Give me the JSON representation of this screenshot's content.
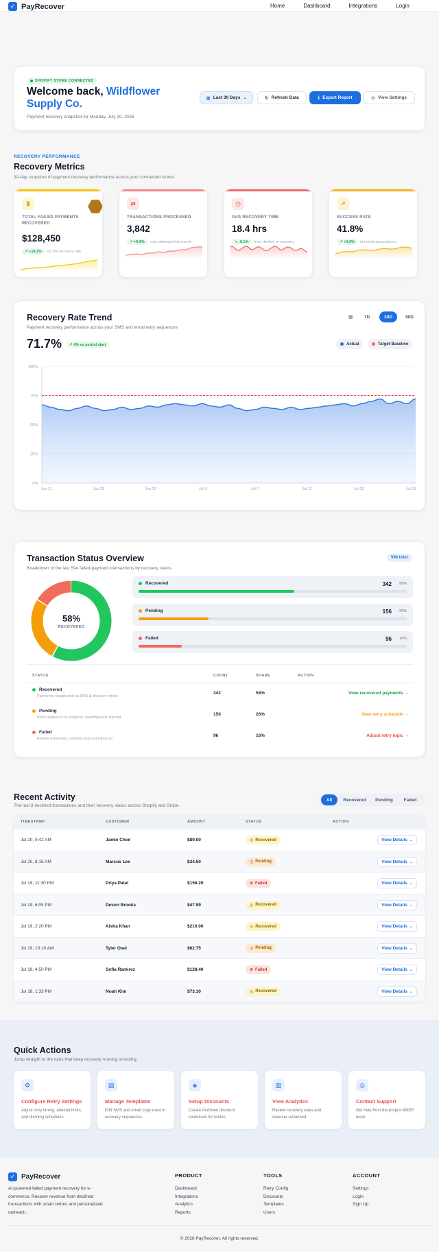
{
  "nav": {
    "brand": "PayRecover",
    "links": [
      "Home",
      "Dashboard",
      "Integrations",
      "Login"
    ]
  },
  "hero": {
    "badge": "SHOPIFY STORE CONNECTED",
    "welcome": "Welcome back, ",
    "store": "Wildflower Supply Co.",
    "subtitle": "Payment recovery snapshot for Monday, July 20, 2026",
    "date_button": "Last 30 Days",
    "refresh_button": "Refresh Data",
    "export_button": "Export Report",
    "settings_button": "View Settings"
  },
  "metrics_section": {
    "eyebrow": "RECOVERY PERFORMANCE",
    "title": "Recovery Metrics",
    "subtitle": "30-day snapshot of payment recovery performance across your connected stores."
  },
  "metrics": [
    {
      "label": "TOTAL FAILED PAYMENTS RECOVERED",
      "value": "$128,450",
      "delta": "+18.2%",
      "note": "62.3% recovery rate",
      "icon": "dollar-icon",
      "color": "#f5c400",
      "icon_bg": "#fdf6d3",
      "glyph": "$"
    },
    {
      "label": "TRANSACTIONS PROCESSED",
      "value": "3,842",
      "delta": "+9.6%",
      "note": "retry attempts this month",
      "icon": "swap-icon",
      "color": "#f08b8b",
      "icon_bg": "#fde7e7",
      "glyph": "⇄"
    },
    {
      "label": "AVG RECOVERY TIME",
      "value": "18.4 hrs",
      "delta": "-6.1%",
      "note": "from decline to recovery",
      "icon": "clock-icon",
      "color": "#ef6b6b",
      "icon_bg": "#fde7e7",
      "glyph": "◷"
    },
    {
      "label": "SUCCESS RATE",
      "value": "41.8%",
      "delta": "+3.6%",
      "note": "of retried transactions",
      "icon": "trend-up-icon",
      "color": "#f2b51c",
      "icon_bg": "#fdf2d6",
      "glyph": "↗"
    }
  ],
  "trend": {
    "title": "Recovery Rate Trend",
    "subtitle": "Payment recovery performance across your SMS and email retry sequences",
    "value": "71.7%",
    "delta": "4% vs period start",
    "ranges": [
      "7D",
      "30D",
      "90D"
    ],
    "active_range": "30D",
    "legend_actual": "Actual",
    "legend_target": "Target Baseline"
  },
  "chart_data": {
    "type": "area",
    "x_ticks": [
      "Jun 21",
      "Jun 25",
      "Jun 29",
      "Jul 3",
      "Jul 7",
      "Jul 11",
      "Jul 15",
      "Jul 19"
    ],
    "y_ticks": [
      "0%",
      "25%",
      "50%",
      "75%",
      "100%"
    ],
    "ylim": [
      0,
      100
    ],
    "target": 75,
    "series": [
      {
        "name": "Actual",
        "values": [
          67,
          65,
          63,
          62,
          64,
          66,
          64,
          62,
          63,
          65,
          63,
          64,
          66,
          65,
          67,
          68,
          67,
          66,
          68,
          66,
          65,
          67,
          64,
          62,
          63,
          65,
          64,
          63,
          65,
          63,
          64,
          65,
          66,
          67,
          68,
          66,
          68,
          70,
          72,
          68,
          70,
          68,
          72
        ]
      }
    ],
    "grid": true
  },
  "status": {
    "title": "Transaction Status Overview",
    "subtitle": "Breakdown of the last 594 failed-payment transactions by recovery status",
    "total": "594 total",
    "donut_pct": "58%",
    "donut_label": "RECOVERED",
    "items": [
      {
        "name": "Recovered",
        "count": "342",
        "share": "58%",
        "value": 58,
        "color": "#22c55e",
        "desc": "Payments recaptured via SMS & discount retries",
        "action": "View recovered payments →",
        "action_color": "#16a34a"
      },
      {
        "name": "Pending",
        "count": "156",
        "share": "26%",
        "value": 26,
        "color": "#f59e0b",
        "desc": "Retry sequence in progress, awaiting next attempt",
        "action": "View retry schedule →",
        "action_color": "#f59e0b"
      },
      {
        "name": "Failed",
        "count": "96",
        "share": "16%",
        "value": 16,
        "color": "#f26b5b",
        "desc": "Retries exhausted, requires manual follow-up",
        "action": "Adjust retry logic →",
        "action_color": "#ef4444"
      }
    ],
    "headers": [
      "STATUS",
      "COUNT",
      "SHARE",
      "ACTION"
    ]
  },
  "activity": {
    "title": "Recent Activity",
    "subtitle": "The last 8 declined transactions and their recovery status across Shopify and Stripe.",
    "filters": [
      "All",
      "Recovered",
      "Pending",
      "Failed"
    ],
    "headers": [
      "TIMESTAMP",
      "CUSTOMER",
      "AMOUNT",
      "STATUS",
      "ACTION"
    ],
    "view_label": "View Details",
    "rows": [
      {
        "time": "Jul 20, 9:42 AM",
        "customer": "Jamie Chen",
        "amount": "$89.00",
        "status": "Recovered"
      },
      {
        "time": "Jul 20, 8:15 AM",
        "customer": "Marcus Lee",
        "amount": "$34.50",
        "status": "Pending"
      },
      {
        "time": "Jul 19, 11:30 PM",
        "customer": "Priya Patel",
        "amount": "$156.20",
        "status": "Failed"
      },
      {
        "time": "Jul 19, 6:05 PM",
        "customer": "Devon Brooks",
        "amount": "$47.99",
        "status": "Recovered"
      },
      {
        "time": "Jul 19, 2:20 PM",
        "customer": "Aisha Khan",
        "amount": "$210.00",
        "status": "Recovered"
      },
      {
        "time": "Jul 19, 10:10 AM",
        "customer": "Tyler Osei",
        "amount": "$62.75",
        "status": "Pending"
      },
      {
        "time": "Jul 18, 4:50 PM",
        "customer": "Sofia Ramirez",
        "amount": "$128.40",
        "status": "Failed"
      },
      {
        "time": "Jul 18, 1:33 PM",
        "customer": "Noah Kim",
        "amount": "$73.10",
        "status": "Recovered"
      }
    ]
  },
  "quick_actions": {
    "title": "Quick Actions",
    "subtitle": "Jump straight to the tools that keep recovery running smoothly.",
    "items": [
      {
        "title": "Configure Retry Settings",
        "desc": "Adjust retry timing, attempt limits, and dunning schedules.",
        "icon": "sliders-icon",
        "glyph": "⚙"
      },
      {
        "title": "Manage Templates",
        "desc": "Edit SMS and email copy used in recovery sequences.",
        "icon": "document-icon",
        "glyph": "▤"
      },
      {
        "title": "Setup Discounts",
        "desc": "Create AI-driven discount incentives for retries.",
        "icon": "tag-icon",
        "glyph": "◈"
      },
      {
        "title": "View Analytics",
        "desc": "Review recovery rates and revenue reclaimed.",
        "icon": "bar-chart-icon",
        "glyph": "▥"
      },
      {
        "title": "Contact Support",
        "desc": "Get help from the project-89087 team.",
        "icon": "lifebuoy-icon",
        "glyph": "◎"
      }
    ]
  },
  "footer": {
    "brand": "PayRecover",
    "desc": "AI-powered failed payment recovery for e-commerce. Recover revenue from declined transactions with smart retries and personalized outreach.",
    "columns": [
      {
        "heading": "PRODUCT",
        "links": [
          "Dashboard",
          "Integrations",
          "Analytics",
          "Reports"
        ]
      },
      {
        "heading": "TOOLS",
        "links": [
          "Retry Config",
          "Discounts",
          "Templates",
          "Users"
        ]
      },
      {
        "heading": "ACCOUNT",
        "links": [
          "Settings",
          "Login",
          "Sign Up"
        ]
      }
    ],
    "copyright": "© 2026 PayRecover. All rights reserved."
  }
}
